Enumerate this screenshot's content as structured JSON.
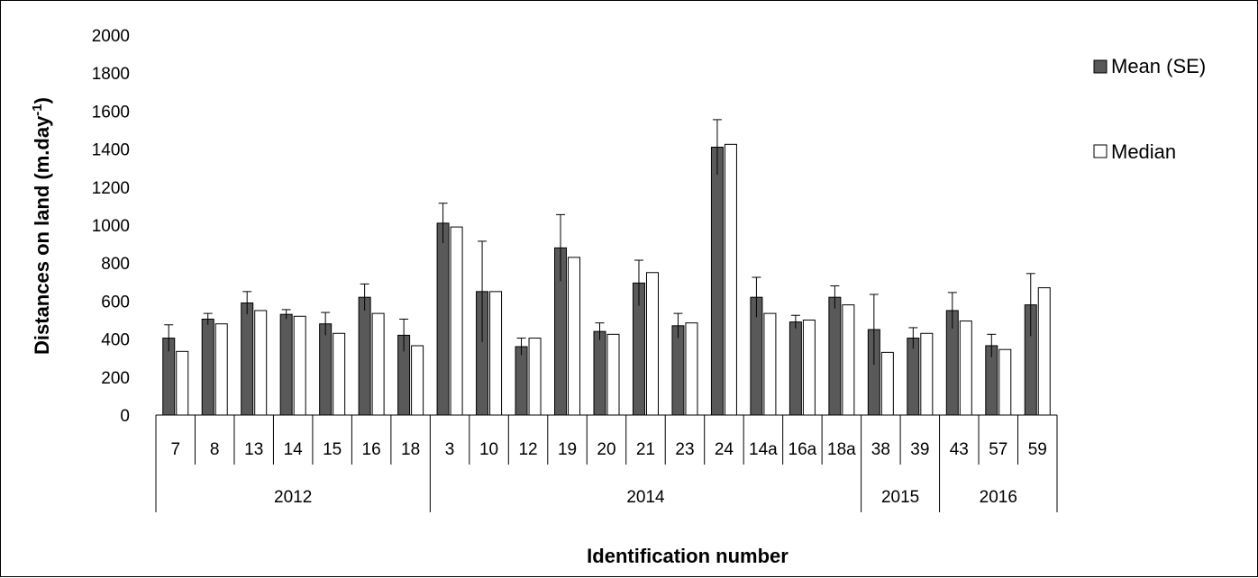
{
  "chart_data": {
    "type": "bar",
    "xlabel": "Identification number",
    "ylabel": "Distances on land (m.day",
    "ylabel_sup": "-1",
    "ylabel_end": ")",
    "ylim": [
      0,
      2000
    ],
    "yticks": [
      0,
      200,
      400,
      600,
      800,
      1000,
      1200,
      1400,
      1600,
      1800,
      2000
    ],
    "legend_position": "right",
    "groups": [
      {
        "label": "2012",
        "count": 7
      },
      {
        "label": "2014",
        "count": 11
      },
      {
        "label": "2015",
        "count": 2
      },
      {
        "label": "2016",
        "count": 3
      }
    ],
    "categories": [
      "7",
      "8",
      "13",
      "14",
      "15",
      "16",
      "18",
      "3",
      "10",
      "12",
      "19",
      "20",
      "21",
      "23",
      "24",
      "14a",
      "16a",
      "18a",
      "38",
      "39",
      "43",
      "57",
      "59"
    ],
    "series": [
      {
        "name": "Mean (SE)",
        "color": "#595959",
        "values": [
          405,
          505,
          590,
          530,
          480,
          620,
          420,
          1010,
          650,
          360,
          880,
          440,
          695,
          470,
          1410,
          620,
          490,
          620,
          450,
          405,
          550,
          365,
          580
        ],
        "errors": [
          70,
          30,
          60,
          25,
          60,
          70,
          85,
          105,
          265,
          45,
          175,
          45,
          120,
          65,
          145,
          105,
          35,
          60,
          185,
          55,
          95,
          60,
          165
        ]
      },
      {
        "name": "Median",
        "color": "#ffffff",
        "values": [
          335,
          480,
          550,
          520,
          430,
          535,
          365,
          990,
          650,
          405,
          830,
          425,
          750,
          485,
          1425,
          535,
          500,
          580,
          330,
          430,
          495,
          345,
          670
        ]
      }
    ]
  }
}
